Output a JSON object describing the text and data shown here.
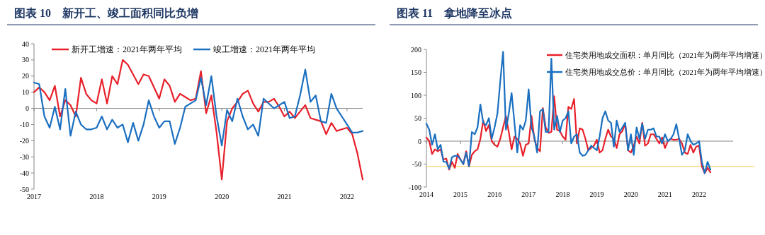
{
  "chart_data": [
    {
      "type": "line",
      "title": "图表 10　新开工、竣工面积同比负增",
      "x": [
        "2017-01",
        "2017-02",
        "2017-03",
        "2017-04",
        "2017-05",
        "2017-06",
        "2017-07",
        "2017-08",
        "2017-09",
        "2017-10",
        "2017-11",
        "2017-12",
        "2018-01",
        "2018-02",
        "2018-03",
        "2018-04",
        "2018-05",
        "2018-06",
        "2018-07",
        "2018-08",
        "2018-09",
        "2018-10",
        "2018-11",
        "2018-12",
        "2019-01",
        "2019-02",
        "2019-03",
        "2019-04",
        "2019-05",
        "2019-06",
        "2019-07",
        "2019-08",
        "2019-09",
        "2019-10",
        "2019-11",
        "2019-12",
        "2020-01",
        "2020-02",
        "2020-03",
        "2020-04",
        "2020-05",
        "2020-06",
        "2020-07",
        "2020-08",
        "2020-09",
        "2020-10",
        "2020-11",
        "2020-12",
        "2021-01",
        "2021-02",
        "2021-03",
        "2021-04",
        "2021-05",
        "2021-06",
        "2021-07",
        "2021-08",
        "2021-09",
        "2021-10",
        "2021-11",
        "2021-12",
        "2022-01",
        "2022-02",
        "2022-03",
        "2022-04"
      ],
      "series": [
        {
          "name": "新开工增速：2021年两年平均",
          "color": "#e8202a",
          "values": [
            10,
            13,
            10,
            5,
            14,
            -5,
            5,
            2,
            -5,
            19,
            9,
            5,
            3,
            18,
            3,
            20,
            15,
            30,
            27,
            21,
            15,
            21,
            20,
            13,
            6,
            18,
            14,
            4,
            9,
            7,
            5,
            6,
            23,
            -3,
            8,
            -15,
            -44,
            -8,
            0,
            4,
            9,
            11,
            3,
            -2,
            4,
            4,
            6,
            1,
            -5,
            -2,
            -6,
            -2,
            2,
            -6,
            -7,
            -8,
            -16,
            -9,
            -14,
            -13,
            -12,
            -16,
            -28,
            -44
          ]
        },
        {
          "name": "竣工增速：2021年两年平均",
          "color": "#1a6fc0",
          "values": [
            16,
            15,
            -5,
            -12,
            1,
            -13,
            12,
            -17,
            -2,
            -10,
            -13,
            -13,
            -12,
            -5,
            -13,
            -7,
            -12,
            -10,
            -21,
            -9,
            -20,
            -10,
            5,
            -5,
            -12,
            -8,
            -8,
            -22,
            -12,
            1,
            3,
            5,
            19,
            2,
            20,
            -5,
            -23,
            -1,
            -8,
            6,
            -5,
            -13,
            -10,
            -17,
            6,
            3,
            0,
            2,
            4,
            -6,
            -5,
            8,
            24,
            4,
            8,
            -8,
            -9,
            9,
            0,
            -5,
            -10,
            -15,
            -15,
            -14
          ]
        }
      ],
      "xlim": [
        "2017-01",
        "2022-04"
      ],
      "xticks": [
        {
          "value": "2017-01",
          "label": "2017"
        },
        {
          "value": "2018-01",
          "label": "2018"
        },
        {
          "value": "2019-01",
          "label": "2019"
        },
        {
          "value": "2020-01",
          "label": "2020"
        },
        {
          "value": "2021-01",
          "label": "2021"
        },
        {
          "value": "2022-01",
          "label": "2022"
        }
      ],
      "ylim": [
        -50,
        40
      ],
      "yticks": [
        -50,
        -40,
        -30,
        -20,
        -10,
        0,
        10,
        20,
        30,
        40
      ],
      "legend": "top"
    },
    {
      "type": "line",
      "title": "图表 11　拿地降至冰点",
      "x": [
        "2014-01",
        "2014-02",
        "2014-03",
        "2014-04",
        "2014-05",
        "2014-06",
        "2014-07",
        "2014-08",
        "2014-09",
        "2014-10",
        "2014-11",
        "2014-12",
        "2015-01",
        "2015-02",
        "2015-03",
        "2015-04",
        "2015-05",
        "2015-06",
        "2015-07",
        "2015-08",
        "2015-09",
        "2015-10",
        "2015-11",
        "2015-12",
        "2016-01",
        "2016-02",
        "2016-03",
        "2016-04",
        "2016-05",
        "2016-06",
        "2016-07",
        "2016-08",
        "2016-09",
        "2016-10",
        "2016-11",
        "2016-12",
        "2017-01",
        "2017-02",
        "2017-03",
        "2017-04",
        "2017-05",
        "2017-06",
        "2017-07",
        "2017-08",
        "2017-09",
        "2017-10",
        "2017-11",
        "2017-12",
        "2018-01",
        "2018-02",
        "2018-03",
        "2018-04",
        "2018-05",
        "2018-06",
        "2018-07",
        "2018-08",
        "2018-09",
        "2018-10",
        "2018-11",
        "2018-12",
        "2019-01",
        "2019-02",
        "2019-03",
        "2019-04",
        "2019-05",
        "2019-06",
        "2019-07",
        "2019-08",
        "2019-09",
        "2019-10",
        "2019-11",
        "2019-12",
        "2020-01",
        "2020-02",
        "2020-03",
        "2020-04",
        "2020-05",
        "2020-06",
        "2020-07",
        "2020-08",
        "2020-09",
        "2020-10",
        "2020-11",
        "2020-12",
        "2021-01",
        "2021-02",
        "2021-03",
        "2021-04",
        "2021-05",
        "2021-06",
        "2021-07",
        "2021-08",
        "2021-09",
        "2021-10",
        "2021-11",
        "2021-12",
        "2022-01",
        "2022-02",
        "2022-03",
        "2022-04",
        "2022-05"
      ],
      "series": [
        {
          "name": "住宅类用地成交面积：单月同比（2021年为两年平均增速）",
          "color": "#e8202a",
          "values": [
            8,
            0,
            -28,
            -18,
            -22,
            -18,
            -40,
            -38,
            -62,
            -45,
            -58,
            -28,
            -40,
            -50,
            -22,
            -55,
            -30,
            -22,
            -18,
            5,
            45,
            22,
            35,
            0,
            -8,
            -12,
            5,
            30,
            55,
            20,
            -18,
            10,
            5,
            -5,
            -32,
            -8,
            -5,
            55,
            5,
            -15,
            -22,
            72,
            30,
            18,
            20,
            98,
            25,
            22,
            10,
            3,
            75,
            70,
            92,
            -5,
            28,
            25,
            5,
            -20,
            -15,
            -10,
            3,
            -25,
            -20,
            5,
            25,
            10,
            5,
            -15,
            15,
            22,
            38,
            -20,
            -25,
            -10,
            10,
            -5,
            40,
            -10,
            -5,
            15,
            15,
            5,
            -5,
            8,
            -15,
            0,
            5,
            3,
            3,
            5,
            -5,
            -25,
            -28,
            -8,
            -25,
            -12,
            -10,
            -55,
            -70,
            -58,
            -68
          ]
        },
        {
          "name": "住宅类用地成交总价：单月同比（2021年为两年平均增速）",
          "color": "#1a6fc0",
          "values": [
            38,
            25,
            -8,
            15,
            -18,
            -8,
            -45,
            -45,
            -60,
            -35,
            -32,
            -32,
            -40,
            -50,
            -25,
            -55,
            20,
            15,
            30,
            80,
            40,
            35,
            50,
            5,
            30,
            60,
            130,
            195,
            25,
            60,
            105,
            40,
            -25,
            35,
            25,
            45,
            113,
            30,
            10,
            -25,
            65,
            70,
            20,
            20,
            180,
            25,
            55,
            20,
            45,
            50,
            65,
            -5,
            10,
            15,
            -25,
            -32,
            -30,
            -20,
            -10,
            -15,
            -20,
            10,
            50,
            65,
            45,
            40,
            -12,
            45,
            20,
            30,
            40,
            -20,
            15,
            -30,
            30,
            5,
            38,
            5,
            25,
            25,
            28,
            10,
            10,
            -5,
            15,
            0,
            5,
            15,
            37,
            5,
            -30,
            -20,
            15,
            0,
            -8,
            -5,
            0,
            -45,
            -70,
            -45,
            -62
          ]
        }
      ],
      "xlim": [
        "2014-01",
        "2023-01"
      ],
      "xticks": [
        {
          "value": "2014-01",
          "label": "2014"
        },
        {
          "value": "2015-01",
          "label": "2015"
        },
        {
          "value": "2016-01",
          "label": "2016"
        },
        {
          "value": "2017-01",
          "label": "2017"
        },
        {
          "value": "2018-01",
          "label": "2018"
        },
        {
          "value": "2019-01",
          "label": "2019"
        },
        {
          "value": "2020-01",
          "label": "2020"
        },
        {
          "value": "2021-01",
          "label": "2021"
        },
        {
          "value": "2022-01",
          "label": "2022"
        }
      ],
      "ylim": [
        -100,
        200
      ],
      "yticks": [
        -100,
        -50,
        0,
        50,
        100,
        150,
        200
      ],
      "legend": "top right",
      "ref_lines": [
        {
          "axis": "y",
          "value": -55,
          "color": "#f5c842"
        }
      ]
    }
  ]
}
